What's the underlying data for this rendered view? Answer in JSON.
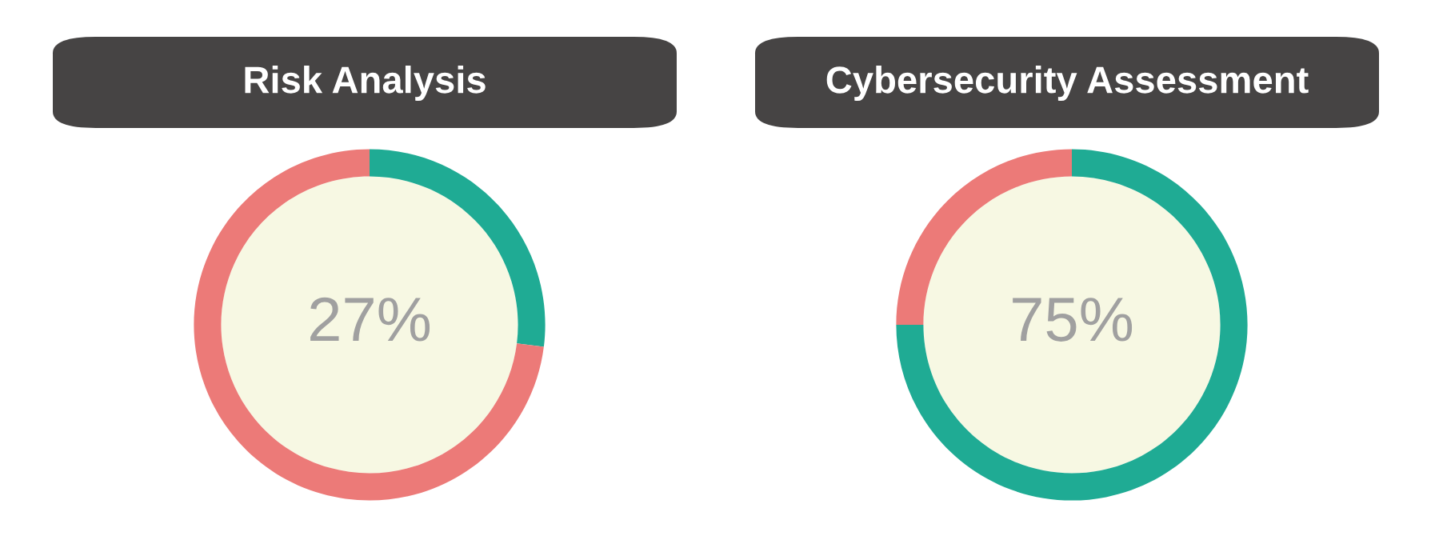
{
  "chart_data": [
    {
      "type": "donut",
      "title": "Risk Analysis",
      "categories": [
        null,
        null
      ],
      "values": [
        27,
        73
      ],
      "colors": [
        "#1fab94",
        "#ec7a78"
      ],
      "value_labels": [
        "27%",
        null
      ]
    },
    {
      "type": "donut",
      "title": "Cybersecurity Assessment",
      "categories": [
        null,
        null
      ],
      "values": [
        75,
        25
      ],
      "colors": [
        "#1fab94",
        "#ec7a78"
      ],
      "value_labels": [
        "75%",
        null
      ]
    }
  ]
}
